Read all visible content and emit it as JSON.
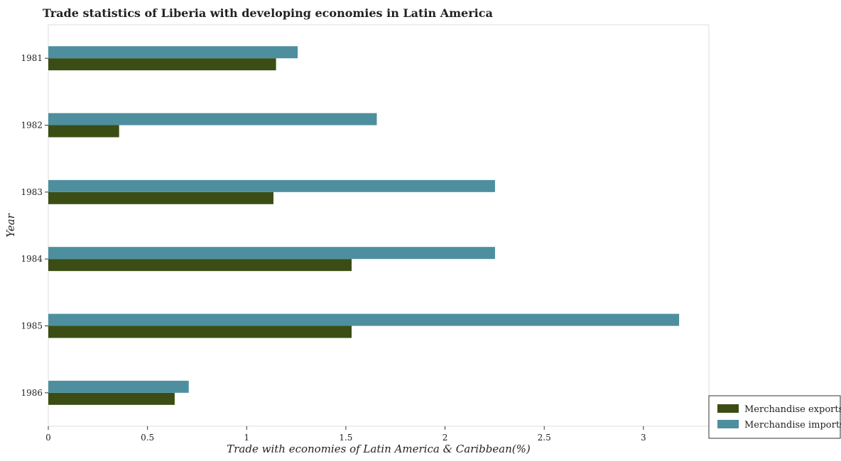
{
  "chart_data": {
    "type": "bar",
    "orientation": "horizontal",
    "title": "Trade statistics of Liberia with developing economies in Latin America",
    "xlabel": "Trade with economies of Latin America & Caribbean(%)",
    "ylabel": "Year",
    "categories": [
      "1981",
      "1982",
      "1983",
      "1984",
      "1985",
      "1986"
    ],
    "series": [
      {
        "name": "Merchandise exports",
        "color": "#3b4d14",
        "values": [
          1.148,
          0.357,
          1.135,
          1.529,
          1.529,
          0.637
        ]
      },
      {
        "name": "Merchandise imports",
        "color": "#4d8f9e",
        "values": [
          1.257,
          1.656,
          2.252,
          2.252,
          3.18,
          0.708
        ]
      }
    ],
    "xlim": [
      0,
      3.33
    ],
    "xticks": [
      0,
      0.5,
      1,
      1.5,
      2,
      2.5,
      3
    ],
    "xtick_labels": [
      "0",
      "0.5",
      "1",
      "1.5",
      "2",
      "2.5",
      "3"
    ],
    "grid": false,
    "legend_position": "bottom-right"
  }
}
